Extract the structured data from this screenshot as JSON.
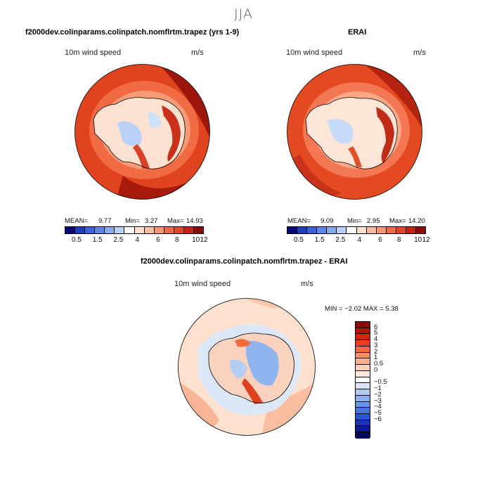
{
  "page": {
    "season": "JJA",
    "palette_warm": [
      "#ffffff",
      "#fde4d6",
      "#fbc4aa",
      "#f7a07c",
      "#f27a52",
      "#e85a34",
      "#dc4220",
      "#c93316",
      "#a5200f",
      "#7a0d0b"
    ],
    "palette_diff": [
      "#7a0d0b",
      "#a81f12",
      "#cc3318",
      "#e64a22",
      "#f26b3c",
      "#f8956c",
      "#fbbea0",
      "#fde0ce",
      "#ffffff",
      "#dce8f8",
      "#b3cdf3",
      "#8fb4ee",
      "#6d9bea",
      "#4c7fe6",
      "#2e5ed9",
      "#1839b8",
      "#0b1f86",
      "#070f55"
    ]
  },
  "panels": {
    "left": {
      "title": "f2000dev.colinparams.colinpatch.nomflrtm.trapez (yrs 1-9)",
      "variable": "10m wind speed",
      "units": "m/s",
      "mean_label": "MEAN=",
      "mean": "9.77",
      "min_label": "Min=",
      "min": "3.27",
      "max_label": "Max=",
      "max": "14.93"
    },
    "right": {
      "title": "ERAI",
      "variable": "10m wind speed",
      "units": "m/s",
      "mean_label": "MEAN=",
      "mean": "9.09",
      "min_label": "Min=",
      "min": "2.95",
      "max_label": "Max=",
      "max": "14.20"
    },
    "diff": {
      "title": "f2000dev.colinparams.colinpatch.nomflrtm.trapez - ERAI",
      "variable": "10m wind speed",
      "units": "m/s",
      "minmax_text": "MIN =  −2.02 MAX =   5.38"
    }
  },
  "colorbars": {
    "speed": {
      "colors": [
        "#08087a",
        "#1a3ec0",
        "#3a63de",
        "#5b86ea",
        "#86a9f0",
        "#b8d0f7",
        "#ffffff",
        "#fde0d0",
        "#fbbda0",
        "#f89672",
        "#f26a46",
        "#e0442a",
        "#c2250f",
        "#8a0a08"
      ],
      "ticks": [
        "0.5",
        "1.5",
        "2.5",
        "4",
        "6",
        "8",
        "10",
        "12"
      ]
    },
    "diff": {
      "colors": [
        "#8a0a08",
        "#b0150b",
        "#d3250e",
        "#ec3f18",
        "#f56a3a",
        "#f99164",
        "#fcb290",
        "#fdd1bb",
        "#fde8dc",
        "#ffffff",
        "#d8e6fa",
        "#b1caf3",
        "#8aaeee",
        "#6793ea",
        "#4776e3",
        "#2a55d2",
        "#1a37b4",
        "#0c1d8d",
        "#050960"
      ],
      "ticks": [
        "6",
        "5",
        "4",
        "3",
        "2",
        "1",
        "0.5",
        "0",
        "−0.5",
        "−1",
        "−2",
        "−3",
        "−4",
        "−5",
        "−6"
      ]
    }
  }
}
